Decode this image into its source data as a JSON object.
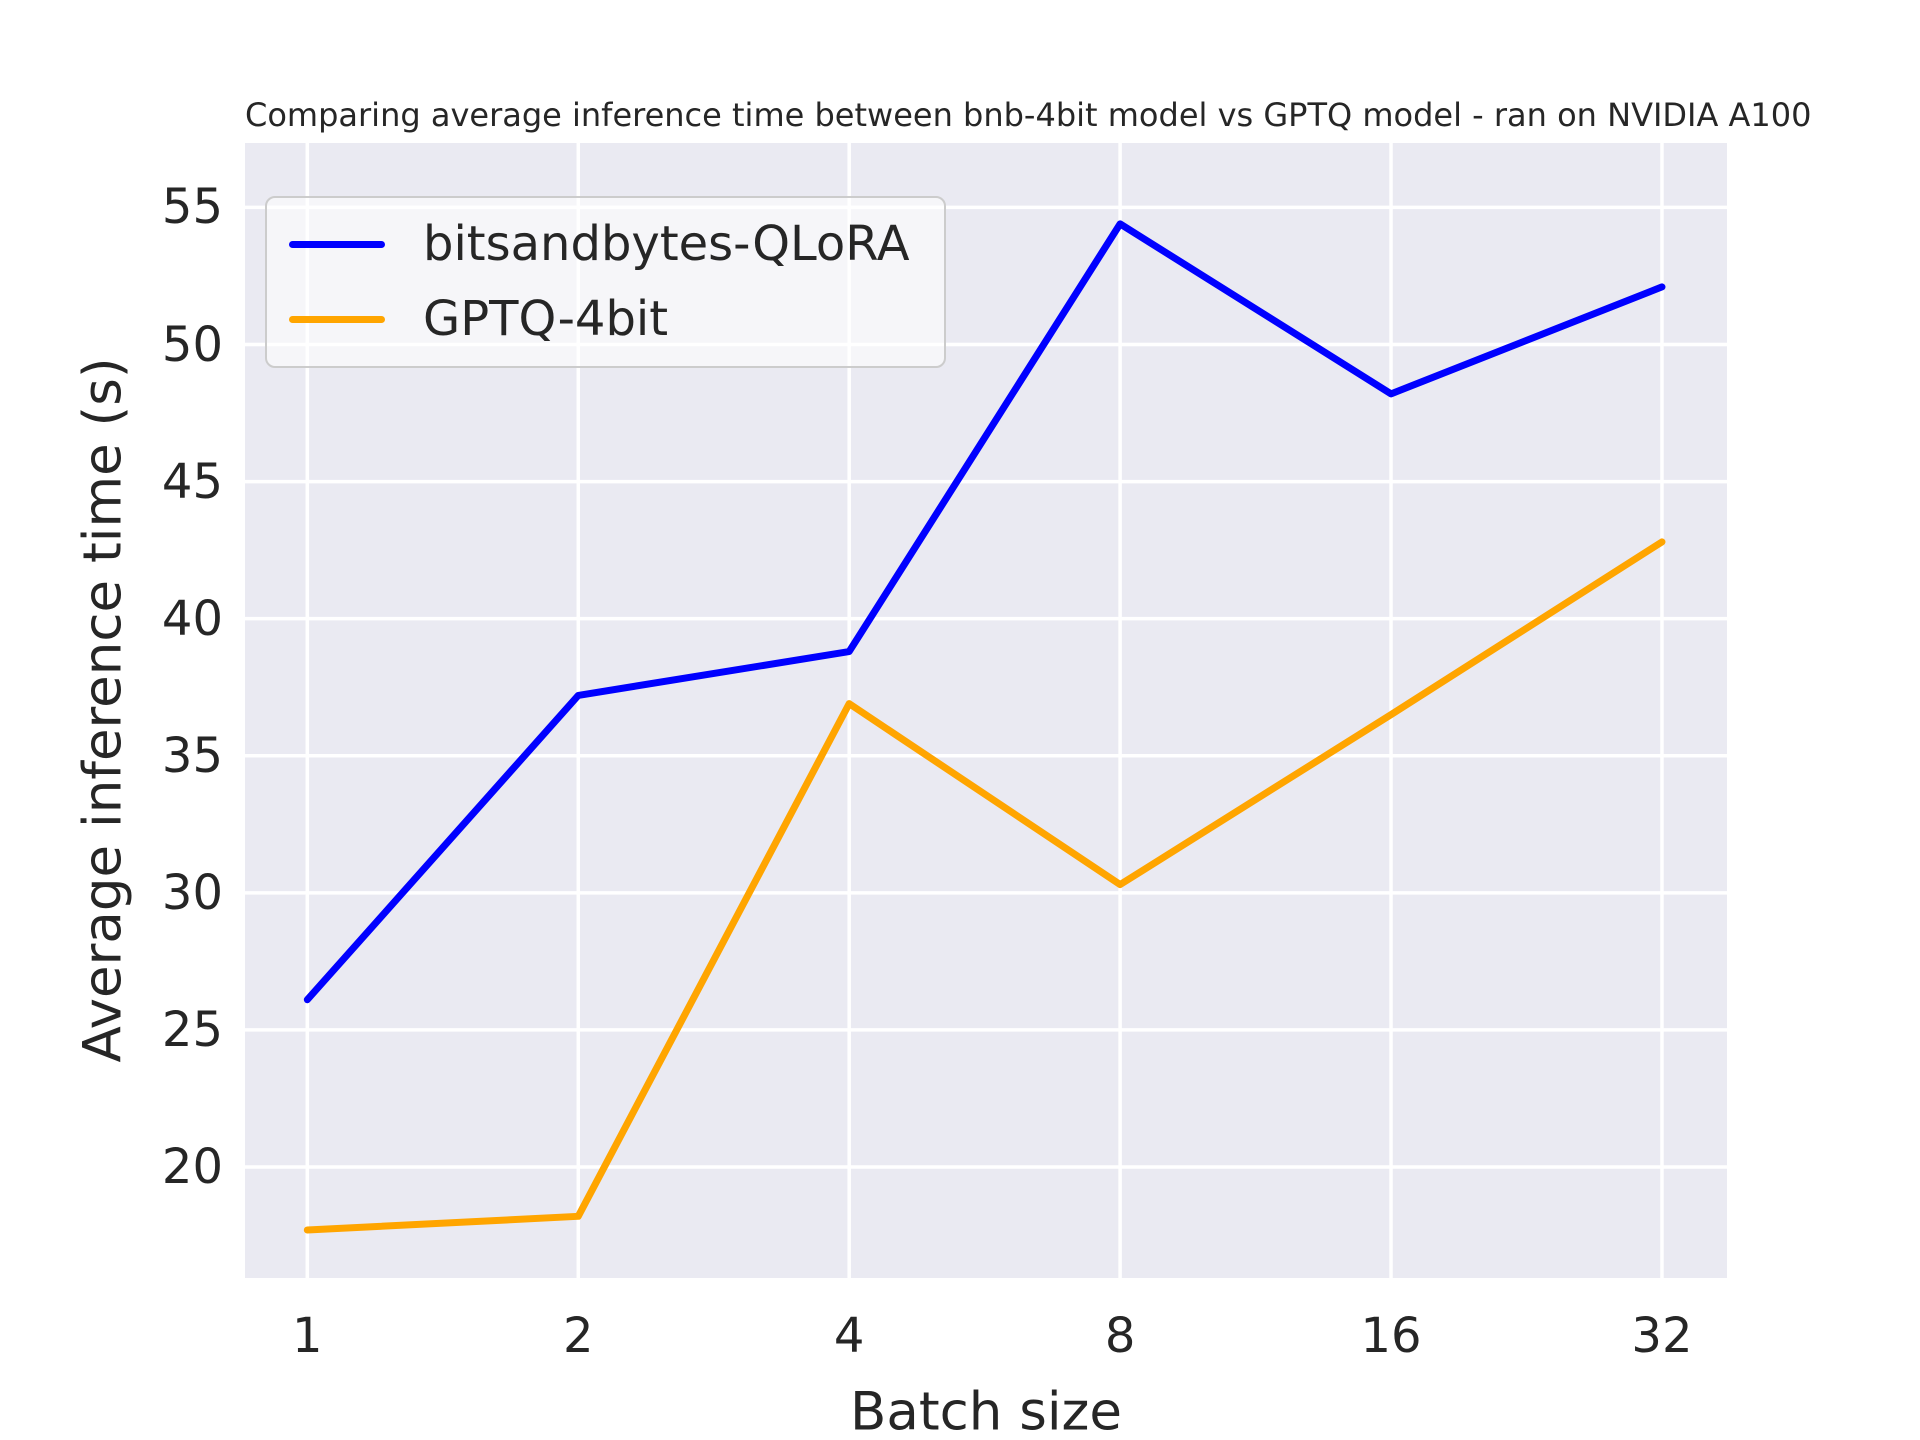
{
  "figure": {
    "title": "Comparing average inference time between bnb-4bit model vs GPTQ model - ran on NVIDIA A100"
  },
  "chart_data": {
    "type": "line",
    "title": "Comparing average inference time between bnb-4bit model vs GPTQ model - ran on NVIDIA A100",
    "xlabel": "Batch size",
    "ylabel": "Average inference time (s)",
    "categories": [
      "1",
      "2",
      "4",
      "8",
      "16",
      "32"
    ],
    "series": [
      {
        "name": "bitsandbytes-QLoRA",
        "color": "#0000ff",
        "values": [
          26.1,
          37.2,
          38.8,
          54.4,
          48.2,
          52.1
        ]
      },
      {
        "name": "GPTQ-4bit",
        "color": "#ffa500",
        "values": [
          17.7,
          18.2,
          36.9,
          30.3,
          36.5,
          42.8
        ]
      }
    ],
    "yticks": [
      20,
      25,
      30,
      35,
      40,
      45,
      50,
      55
    ],
    "ylim": [
      15.95,
      57.35
    ],
    "xlim_index": [
      -0.23,
      5.24
    ],
    "grid": true,
    "grid_color": "#ffffff",
    "plot_bg": "#eaeaf2",
    "text_color": "#262626",
    "legend_position": "upper left"
  }
}
